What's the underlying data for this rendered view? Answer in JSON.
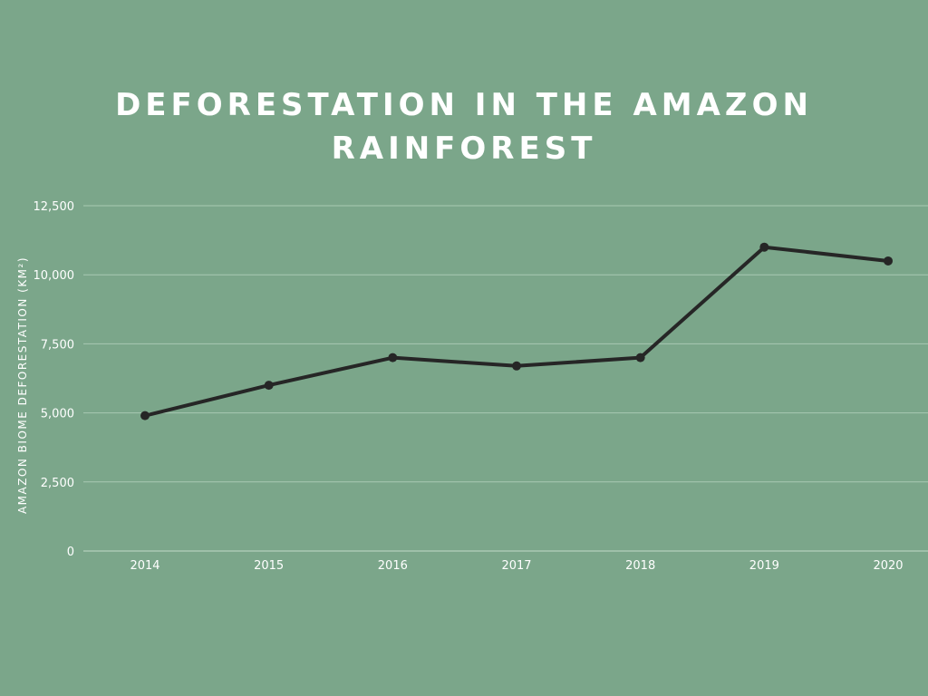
{
  "title_line1": "DEFORESTATION IN THE AMAZON",
  "title_line2": "RAINFOREST",
  "colors": {
    "background": "#7ba68a",
    "line": "#262626",
    "grid": "#a9c9b3",
    "text": "#ffffff"
  },
  "chart_data": {
    "type": "line",
    "title": "DEFORESTATION IN THE AMAZON RAINFOREST",
    "xlabel": "",
    "ylabel": "AMAZON BIOME DEFORESTATION (KM²)",
    "categories": [
      "2014",
      "2015",
      "2016",
      "2017",
      "2018",
      "2019",
      "2020"
    ],
    "values": [
      4900,
      6000,
      7000,
      6700,
      7000,
      11000,
      10500
    ],
    "ylim": [
      0,
      12500
    ],
    "yticks": [
      0,
      2500,
      5000,
      7500,
      10000,
      12500
    ],
    "ytick_labels": [
      "0",
      "2,500",
      "5,000",
      "7,500",
      "10,000",
      "12,500"
    ],
    "grid": true,
    "legend": "none"
  }
}
